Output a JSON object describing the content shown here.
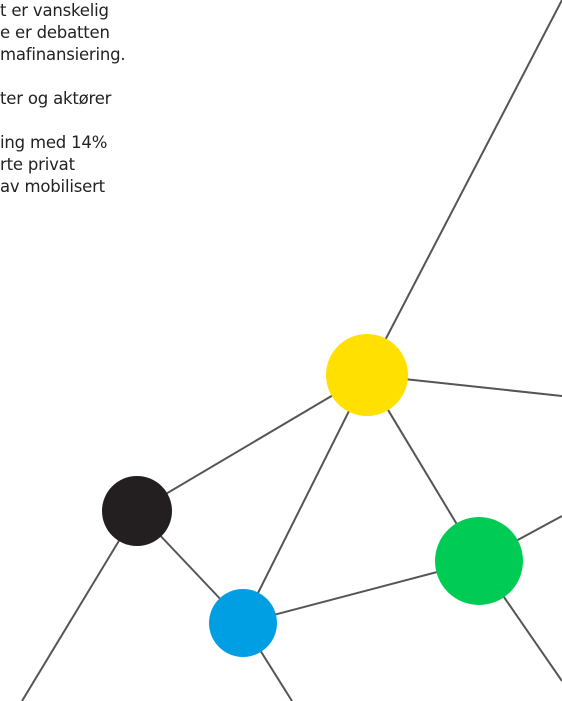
{
  "text": {
    "lines": [
      "t er vanskelig",
      "e er debatten",
      "mafinansiering.",
      "",
      "ter og aktører",
      "",
      "ing med 14%",
      "rte privat",
      " av mobilisert"
    ]
  },
  "graphic": {
    "nodes": [
      {
        "name": "yellow",
        "color": "#FFE000"
      },
      {
        "name": "black",
        "color": "#231F20"
      },
      {
        "name": "blue",
        "color": "#009FE3"
      },
      {
        "name": "green",
        "color": "#00CC55"
      }
    ],
    "line_color": "#555555"
  }
}
